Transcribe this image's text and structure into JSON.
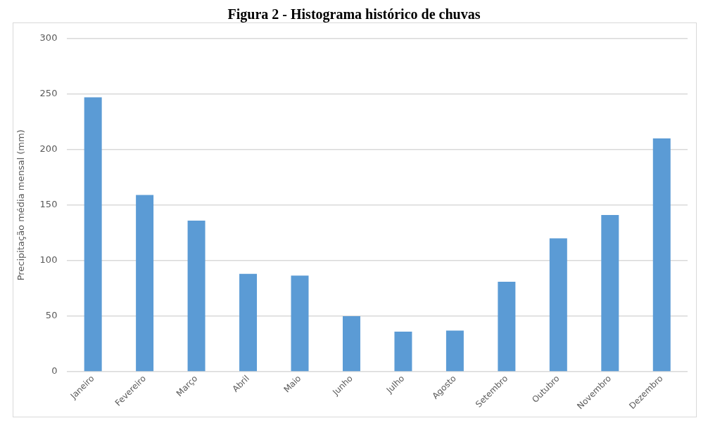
{
  "chart_data": {
    "type": "bar",
    "title": "Figura 2 - Histograma histórico de chuvas",
    "ylabel": "Precipitação média mensal (mm)",
    "categories": [
      "Janeiro",
      "Fevereiro",
      "Março",
      "Abril",
      "Maio",
      "Junho",
      "Julho",
      "Agosto",
      "Setembro",
      "Outubro",
      "Novembro",
      "Dezembro"
    ],
    "values": [
      247,
      159,
      136,
      88,
      86.5,
      50,
      36,
      37,
      81,
      120,
      141,
      210
    ],
    "color": "#5b9bd5",
    "ylim": [
      0,
      300
    ],
    "yticks": [
      0,
      50,
      100,
      150,
      200,
      250,
      300
    ],
    "grid": "y",
    "legend": false
  }
}
